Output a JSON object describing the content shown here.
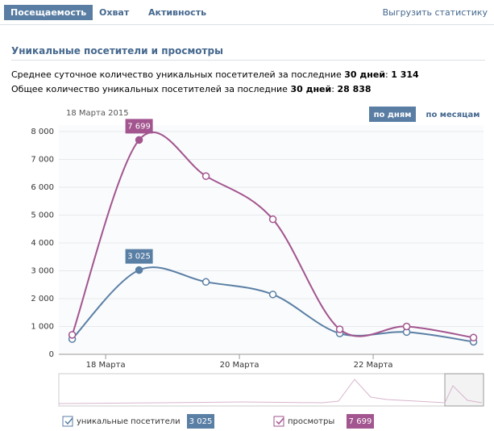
{
  "tabs": [
    "Посещаемость",
    "Охват",
    "Активность"
  ],
  "export": "Выгрузить статистику",
  "section_title": "Уникальные посетители и просмотры",
  "stats": [
    {
      "text": "Среднее суточное количество уникальных посетителей за последние ",
      "period": "30 дней",
      "sep": ": ",
      "value": "1 314"
    },
    {
      "text": "Общее количество уникальных посетителей за последние ",
      "period": "30 дней",
      "sep": ": ",
      "value": "28 838"
    }
  ],
  "date_label": "18 Марта 2015",
  "buttons": [
    "по дням",
    "по месяцам"
  ],
  "chart_data": {
    "type": "line",
    "x": [
      17.5,
      18.5,
      19.5,
      20.5,
      21.5,
      22.5,
      23.5
    ],
    "xlim": [
      17.3,
      23.65
    ],
    "xticks": [
      {
        "value": 18,
        "label": "18 Марта"
      },
      {
        "value": 20,
        "label": "20 Марта"
      },
      {
        "value": 22,
        "label": "22 Марта"
      }
    ],
    "ylim": [
      0,
      8000
    ],
    "yticks": [
      0,
      {
        "value": 1000,
        "label": "1 000"
      },
      {
        "value": 2000,
        "label": "2 000"
      },
      {
        "value": 3000,
        "label": "3 000"
      },
      {
        "value": 4000,
        "label": "4 000"
      },
      {
        "value": 5000,
        "label": "5 000"
      },
      {
        "value": 6000,
        "label": "6 000"
      },
      {
        "value": 7000,
        "label": "7 000"
      },
      {
        "value": 8000,
        "label": "8 000"
      }
    ],
    "grid": true,
    "series": [
      {
        "name": "уникальные посетители",
        "color": "#5a7fa5",
        "values": [
          550,
          3025,
          2600,
          2150,
          750,
          800,
          450
        ],
        "value_labels": [
          null,
          "3 025",
          null,
          null,
          null,
          null,
          null
        ]
      },
      {
        "name": "просмотры",
        "color": "#a2558e",
        "values": [
          700,
          7699,
          6400,
          4850,
          900,
          1000,
          600
        ],
        "value_labels": [
          null,
          "7 699",
          null,
          null,
          null,
          null,
          null
        ]
      }
    ]
  }
}
